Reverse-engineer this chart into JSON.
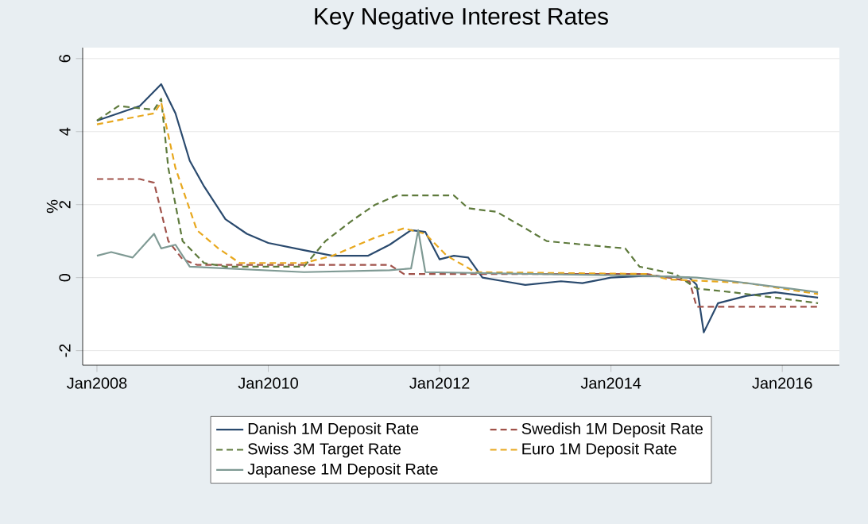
{
  "chart_data": {
    "type": "line",
    "title": "Key Negative Interest Rates",
    "ylabel": "%",
    "xlim": [
      "2007-11",
      "2016-09"
    ],
    "ylim": [
      -2.4,
      6.3
    ],
    "xticks": [
      {
        "value": "2008-01",
        "label": "Jan2008"
      },
      {
        "value": "2010-01",
        "label": "Jan2010"
      },
      {
        "value": "2012-01",
        "label": "Jan2012"
      },
      {
        "value": "2014-01",
        "label": "Jan2014"
      },
      {
        "value": "2016-01",
        "label": "Jan2016"
      }
    ],
    "yticks": [
      -2,
      0,
      2,
      4,
      6
    ],
    "grid": "y",
    "legend": "bottom",
    "marker": "none",
    "series": [
      {
        "name": "Danish 1M Deposit Rate",
        "color": "#2a4a6e",
        "line_style": "solid",
        "x": [
          "2008-01",
          "2008-04",
          "2008-07",
          "2008-10",
          "2008-12",
          "2009-02",
          "2009-04",
          "2009-07",
          "2009-10",
          "2010-01",
          "2010-06",
          "2010-10",
          "2011-03",
          "2011-06",
          "2011-09",
          "2011-11",
          "2012-01",
          "2012-03",
          "2012-05",
          "2012-07",
          "2012-10",
          "2013-01",
          "2013-06",
          "2013-09",
          "2014-01",
          "2014-06",
          "2014-12",
          "2015-01",
          "2015-02",
          "2015-04",
          "2015-08",
          "2015-12",
          "2016-04",
          "2016-06"
        ],
        "values": [
          4.3,
          4.5,
          4.7,
          5.3,
          4.5,
          3.2,
          2.5,
          1.6,
          1.2,
          0.95,
          0.75,
          0.6,
          0.6,
          0.9,
          1.3,
          1.25,
          0.5,
          0.6,
          0.55,
          0.0,
          -0.1,
          -0.2,
          -0.1,
          -0.15,
          0.0,
          0.05,
          0.0,
          -0.2,
          -1.5,
          -0.7,
          -0.5,
          -0.4,
          -0.5,
          -0.55
        ]
      },
      {
        "name": "Swedish 1M Deposit Rate",
        "color": "#a0524a",
        "line_style": "dashed",
        "x": [
          "2008-01",
          "2008-07",
          "2008-09",
          "2008-11",
          "2009-01",
          "2009-03",
          "2011-06",
          "2011-08",
          "2014-06",
          "2014-12",
          "2015-01",
          "2016-06"
        ],
        "values": [
          2.7,
          2.7,
          2.6,
          1.0,
          0.5,
          0.35,
          0.35,
          0.1,
          0.1,
          -0.1,
          -0.8,
          -0.8
        ]
      },
      {
        "name": "Swiss 3M Target Rate",
        "color": "#5e7a3c",
        "line_style": "dashed",
        "x": [
          "2008-01",
          "2008-04",
          "2008-09",
          "2008-10",
          "2008-11",
          "2009-01",
          "2009-04",
          "2009-07",
          "2010-06",
          "2010-09",
          "2011-01",
          "2011-04",
          "2011-07",
          "2012-03",
          "2012-05",
          "2012-09",
          "2013-01",
          "2013-04",
          "2013-12",
          "2014-03",
          "2014-05",
          "2014-10",
          "2015-01",
          "2015-06",
          "2016-06"
        ],
        "values": [
          4.3,
          4.7,
          4.6,
          4.9,
          3.0,
          1.0,
          0.4,
          0.3,
          0.3,
          1.0,
          1.6,
          2.0,
          2.25,
          2.25,
          1.9,
          1.8,
          1.35,
          1.0,
          0.85,
          0.8,
          0.3,
          0.1,
          -0.3,
          -0.4,
          -0.7
        ]
      },
      {
        "name": "Euro 1M Deposit Rate",
        "color": "#e8a81e",
        "line_style": "dashed",
        "x": [
          "2008-01",
          "2008-09",
          "2008-10",
          "2008-12",
          "2009-03",
          "2009-06",
          "2009-09",
          "2010-06",
          "2010-10",
          "2011-04",
          "2011-08",
          "2011-11",
          "2012-02",
          "2012-06",
          "2014-06",
          "2014-09",
          "2015-03",
          "2015-08",
          "2016-01",
          "2016-06"
        ],
        "values": [
          4.2,
          4.5,
          4.8,
          3.0,
          1.3,
          0.8,
          0.4,
          0.4,
          0.6,
          1.1,
          1.35,
          1.2,
          0.6,
          0.15,
          0.1,
          -0.05,
          -0.1,
          -0.15,
          -0.3,
          -0.45
        ]
      },
      {
        "name": "Japanese 1M Deposit Rate",
        "color": "#7f9a94",
        "line_style": "solid",
        "x": [
          "2008-01",
          "2008-03",
          "2008-06",
          "2008-09",
          "2008-10",
          "2008-12",
          "2009-02",
          "2010-06",
          "2011-06",
          "2011-09",
          "2011-10",
          "2011-11",
          "2014-06",
          "2015-01",
          "2015-06",
          "2015-10",
          "2016-02",
          "2016-06"
        ],
        "values": [
          0.6,
          0.7,
          0.55,
          1.2,
          0.8,
          0.9,
          0.3,
          0.15,
          0.2,
          0.25,
          1.3,
          0.15,
          0.05,
          0.0,
          -0.1,
          -0.2,
          -0.3,
          -0.4
        ]
      }
    ]
  }
}
